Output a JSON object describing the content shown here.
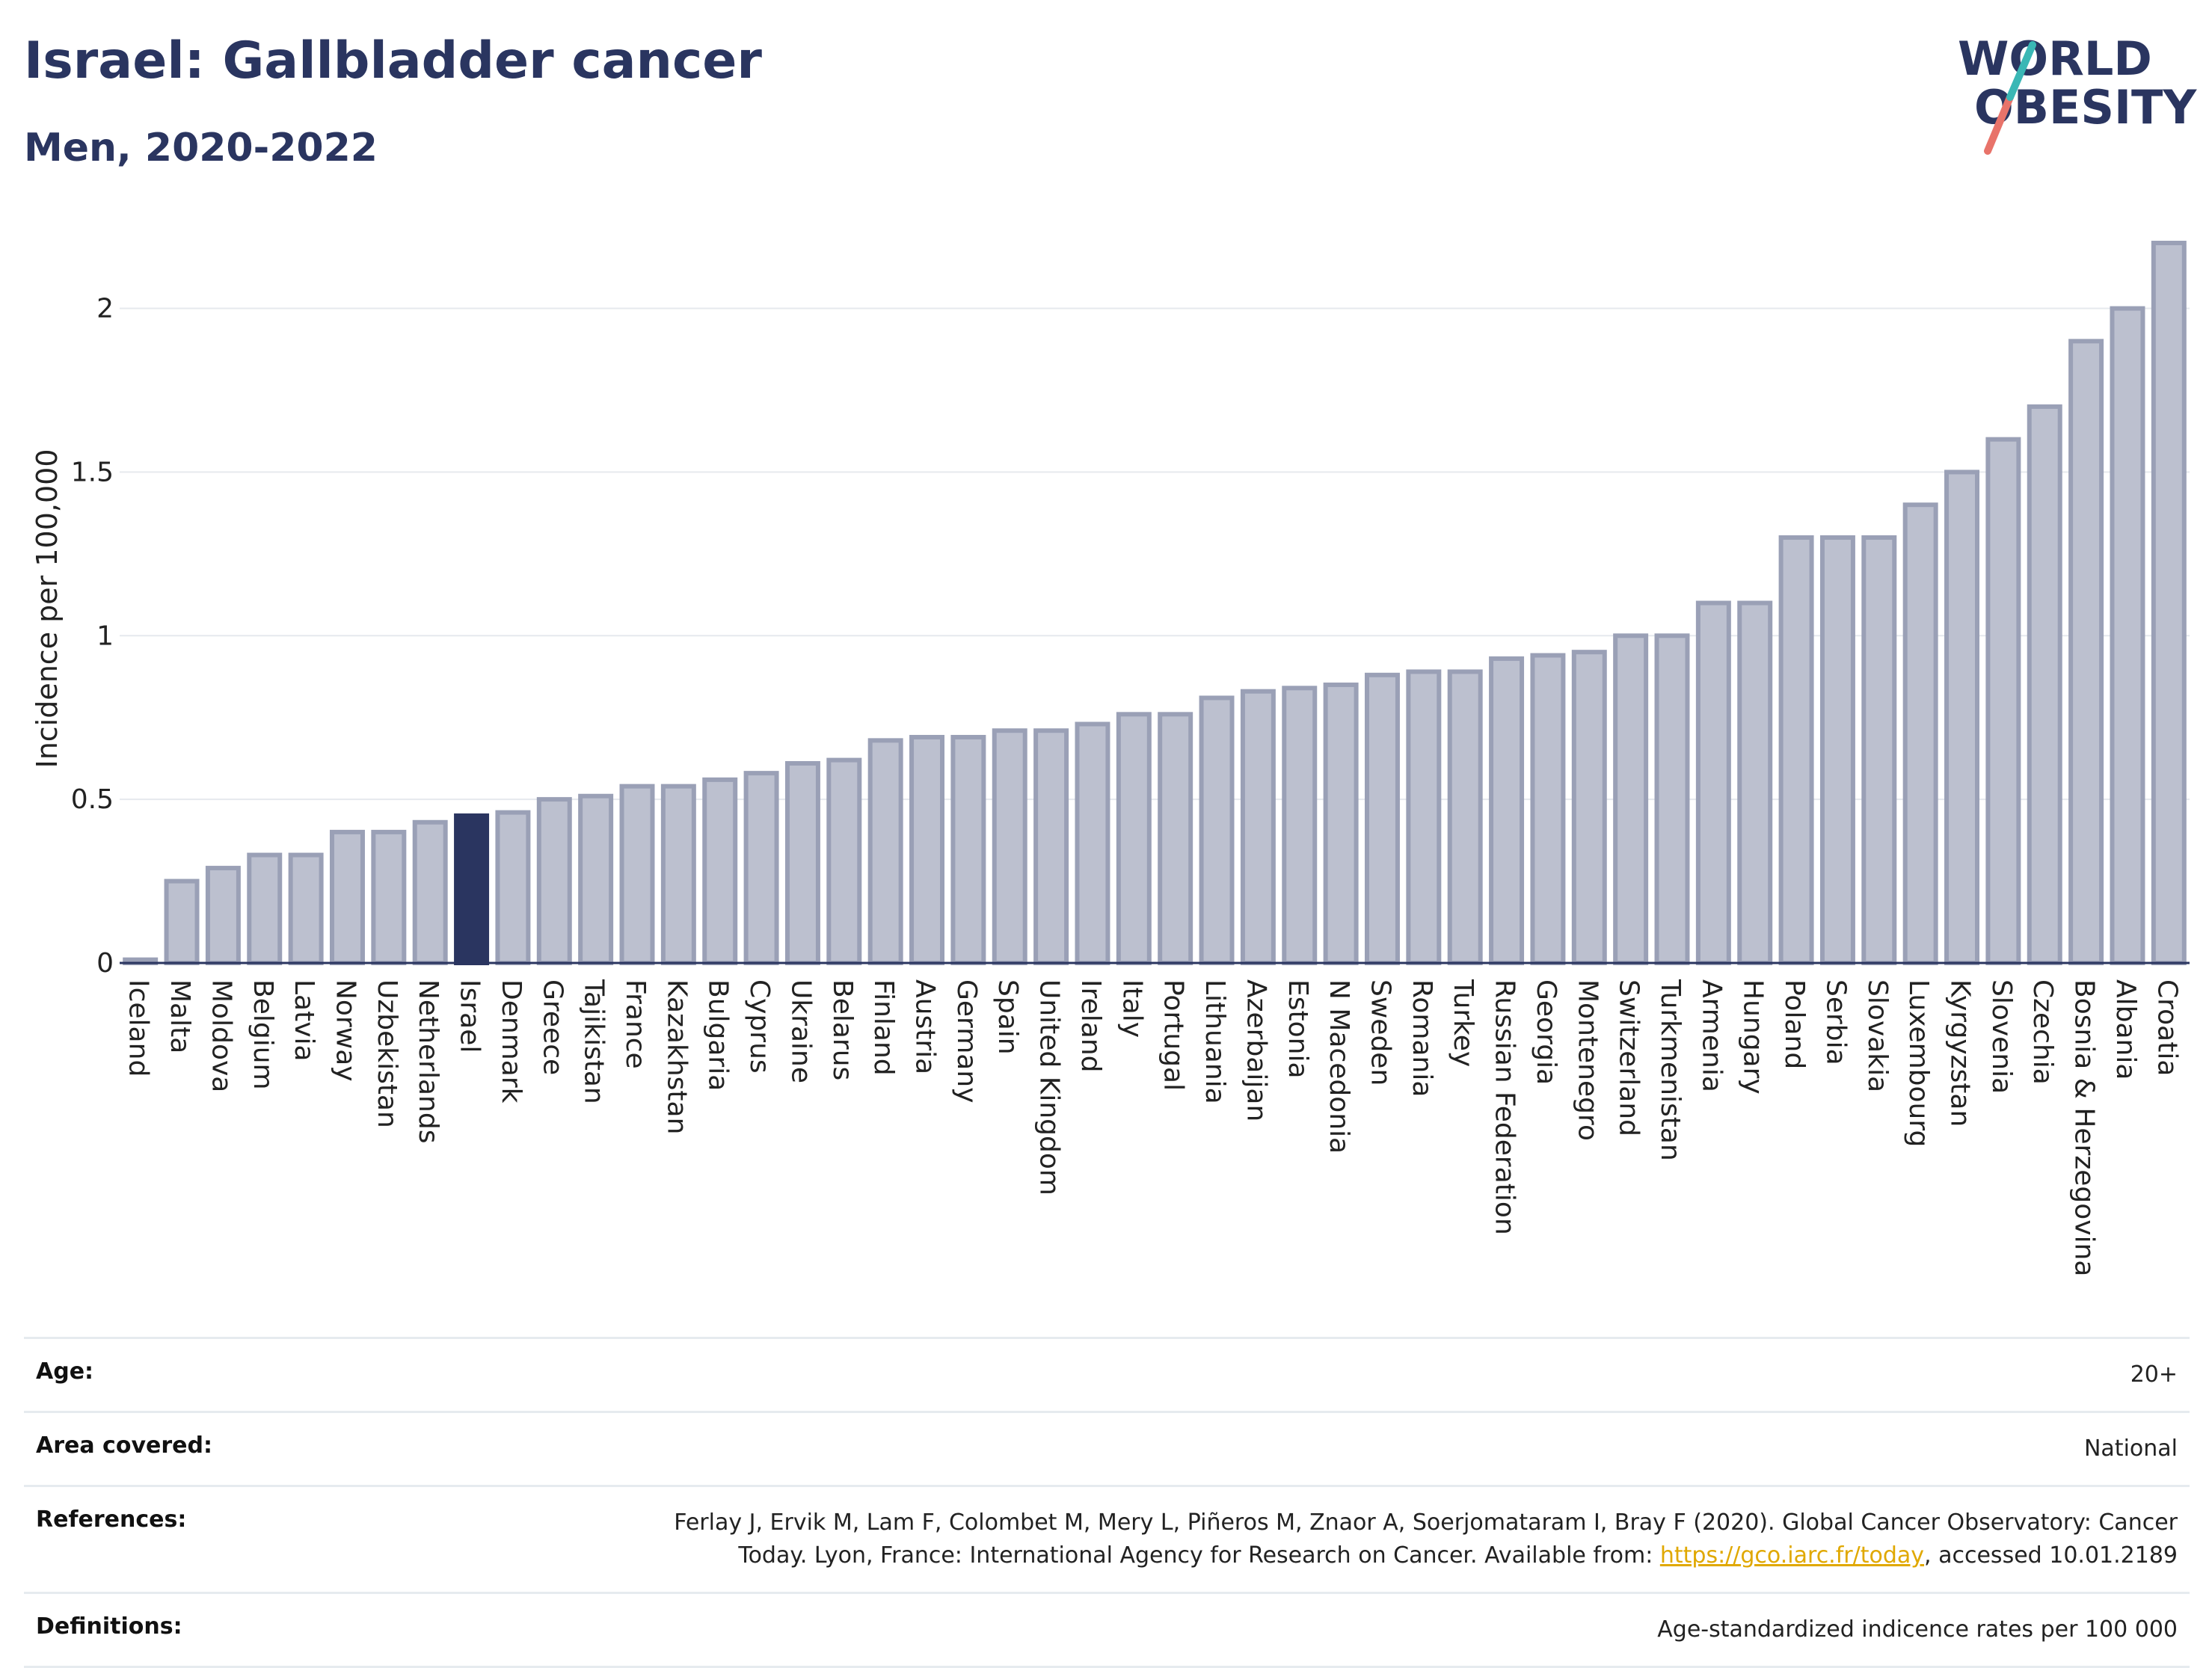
{
  "header": {
    "title": "Israel: Gallbladder cancer",
    "subtitle": "Men, 2020-2022"
  },
  "logo": {
    "line1": "WORLD",
    "line2": "OBESITY"
  },
  "colors": {
    "highlight": "#2a3560",
    "bar_fill": "#bcc0cf",
    "bar_stroke": "#9aa0b6",
    "logo_teal": "#3ab7b5",
    "logo_coral": "#e8736a",
    "link": "#e0a800"
  },
  "chart_data": {
    "type": "bar",
    "title": "Israel: Gallbladder cancer",
    "subtitle": "Men, 2020-2022",
    "ylabel": "Incidence per 100,000",
    "xlabel": "",
    "ylim": [
      0,
      2.2
    ],
    "yticks": [
      0,
      0.5,
      1,
      1.5,
      2
    ],
    "ytick_labels": [
      "0",
      "0.5",
      "1",
      "1.5",
      "2"
    ],
    "highlight": "Israel",
    "grid": true,
    "categories": [
      "Iceland",
      "Malta",
      "Moldova",
      "Belgium",
      "Latvia",
      "Norway",
      "Uzbekistan",
      "Netherlands",
      "Israel",
      "Denmark",
      "Greece",
      "Tajikistan",
      "France",
      "Kazakhstan",
      "Bulgaria",
      "Cyprus",
      "Ukraine",
      "Belarus",
      "Finland",
      "Austria",
      "Germany",
      "Spain",
      "United Kingdom",
      "Ireland",
      "Italy",
      "Portugal",
      "Lithuania",
      "Azerbaijan",
      "Estonia",
      "N Macedonia",
      "Sweden",
      "Romania",
      "Turkey",
      "Russian Federation",
      "Georgia",
      "Montenegro",
      "Switzerland",
      "Turkmenistan",
      "Armenia",
      "Hungary",
      "Poland",
      "Serbia",
      "Slovakia",
      "Luxembourg",
      "Kyrgyzstan",
      "Slovenia",
      "Czechia",
      "Bosnia & Herzegovina",
      "Albania",
      "Croatia"
    ],
    "values": [
      0.01,
      0.25,
      0.29,
      0.33,
      0.33,
      0.4,
      0.4,
      0.43,
      0.45,
      0.46,
      0.5,
      0.51,
      0.54,
      0.54,
      0.56,
      0.58,
      0.61,
      0.62,
      0.68,
      0.69,
      0.69,
      0.71,
      0.71,
      0.73,
      0.76,
      0.76,
      0.81,
      0.83,
      0.84,
      0.85,
      0.88,
      0.89,
      0.89,
      0.93,
      0.94,
      0.95,
      1.0,
      1.0,
      1.1,
      1.1,
      1.3,
      1.3,
      1.3,
      1.4,
      1.5,
      1.6,
      1.7,
      1.9,
      2.0,
      2.2
    ]
  },
  "info": {
    "age_label": "Age:",
    "age_value": "20+",
    "area_label": "Area covered:",
    "area_value": "National",
    "references_label": "References:",
    "references_line1": "Ferlay J, Ervik M, Lam F, Colombet M, Mery L, Piñeros M, Znaor A, Soerjomataram I, Bray F (2020). Global Cancer Observatory: Cancer",
    "references_line2_pre": "Today. Lyon, France: International Agency for Research on Cancer. Available from: ",
    "references_link": "https://gco.iarc.fr/today",
    "references_line2_post": ", accessed 10.01.2189",
    "definitions_label": "Definitions:",
    "definitions_value": "Age-standardized indicence rates per 100 000"
  }
}
